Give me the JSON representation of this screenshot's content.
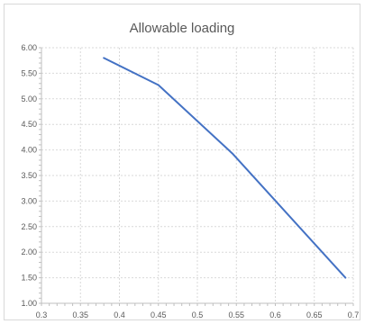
{
  "chart_data": {
    "type": "line",
    "title": "Allowable loading",
    "xlabel": "",
    "ylabel": "",
    "xlim": [
      0.3,
      0.7
    ],
    "ylim": [
      1.0,
      6.0
    ],
    "x_ticks": [
      "0.3",
      "0.35",
      "0.4",
      "0.45",
      "0.5",
      "0.55",
      "0.6",
      "0.65",
      "0.7"
    ],
    "y_ticks": [
      "1.00",
      "1.50",
      "2.00",
      "2.50",
      "3.00",
      "3.50",
      "4.00",
      "4.50",
      "5.00",
      "5.50",
      "6.00"
    ],
    "grid": true,
    "legend": "none",
    "series": [
      {
        "color": "#4472c4",
        "points": [
          [
            0.38,
            5.8
          ],
          [
            0.45,
            5.27
          ],
          [
            0.545,
            3.93
          ],
          [
            0.69,
            1.5
          ]
        ]
      }
    ]
  }
}
